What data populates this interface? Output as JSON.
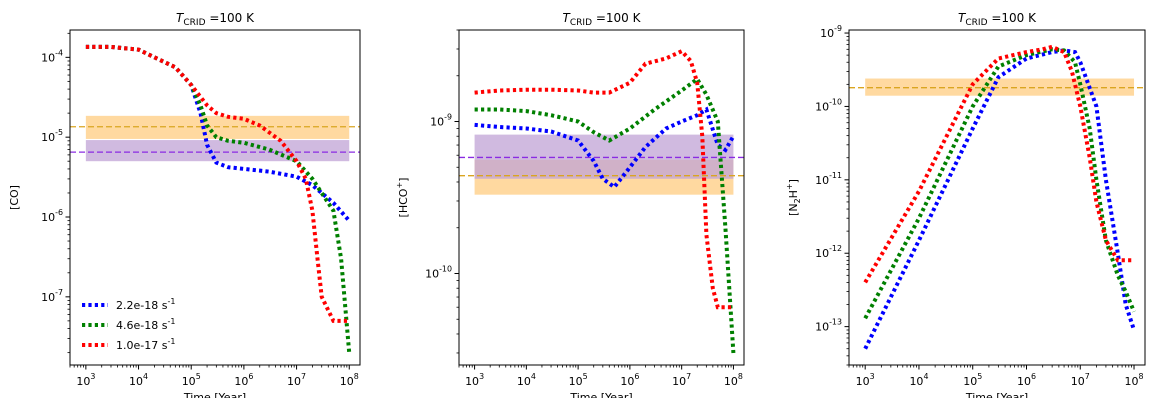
{
  "chart_data": [
    {
      "type": "line",
      "title": "T_CRID =100 K",
      "title_parts": {
        "symbol": "T",
        "subscript": "CRID",
        "rest": " =100 K"
      },
      "xlabel": "Time [Year]",
      "ylabel": "[CO]",
      "xscale": "log",
      "yscale": "log",
      "xlim": [
        500,
        160000000
      ],
      "ylim": [
        1.4e-08,
        0.00022
      ],
      "x_ticks": [
        {
          "value": 1000.0,
          "label": "10^3"
        },
        {
          "value": 10000.0,
          "label": "10^4"
        },
        {
          "value": 100000.0,
          "label": "10^5"
        },
        {
          "value": 1000000.0,
          "label": "10^6"
        },
        {
          "value": 10000000.0,
          "label": "10^7"
        },
        {
          "value": 100000000.0,
          "label": "10^8"
        }
      ],
      "y_ticks": [
        {
          "value": 1e-07,
          "label": "10^-7"
        },
        {
          "value": 1e-06,
          "label": "10^-6"
        },
        {
          "value": 1e-05,
          "label": "10^-5"
        },
        {
          "value": 0.0001,
          "label": "10^-4"
        }
      ],
      "series": [
        {
          "color": "#0000ff",
          "x": [
            1000.0,
            3000.0,
            10000.0,
            20000.0,
            50000.0,
            100000.0,
            150000.0,
            200000.0,
            300000.0,
            500000.0,
            1000000.0,
            3000000.0,
            10000000.0,
            20000000.0,
            50000000.0,
            100000000.0
          ],
          "y": [
            0.000135,
            0.000135,
            0.000125,
            0.0001,
            7.5e-05,
            4.5e-05,
            2e-05,
            8e-06,
            4.8e-06,
            4.2e-06,
            4e-06,
            3.7e-06,
            3.2e-06,
            2.5e-06,
            1.5e-06,
            9e-07
          ]
        },
        {
          "color": "#008000",
          "x": [
            1000.0,
            3000.0,
            10000.0,
            20000.0,
            50000.0,
            100000.0,
            150000.0,
            200000.0,
            300000.0,
            500000.0,
            1000000.0,
            3000000.0,
            10000000.0,
            20000000.0,
            30000000.0,
            50000000.0,
            70000000.0,
            100000000.0
          ],
          "y": [
            0.000135,
            0.000135,
            0.000125,
            0.0001,
            7.5e-05,
            4.5e-05,
            2.5e-05,
            1.4e-05,
            1e-05,
            9e-06,
            8.5e-06,
            7e-06,
            5e-06,
            3e-06,
            2e-06,
            1.2e-06,
            3e-07,
            2e-08
          ]
        },
        {
          "color": "#ff0000",
          "x": [
            1000.0,
            3000.0,
            10000.0,
            20000.0,
            50000.0,
            100000.0,
            200000.0,
            300000.0,
            500000.0,
            1000000.0,
            2000000.0,
            5000000.0,
            10000000.0,
            15000000.0,
            20000000.0,
            25000000.0,
            30000000.0,
            50000000.0,
            70000000.0,
            100000000.0
          ],
          "y": [
            0.000135,
            0.000135,
            0.000125,
            0.0001,
            7.5e-05,
            4.5e-05,
            2.5e-05,
            2e-05,
            1.8e-05,
            1.7e-05,
            1.4e-05,
            9e-06,
            5e-06,
            3e-06,
            1.2e-06,
            3e-07,
            1e-07,
            5e-08,
            5e-08,
            5e-08
          ]
        }
      ],
      "hlines": [
        {
          "y": 1.35e-05,
          "color": "#daa520",
          "band": [
            9.5e-06,
            1.85e-05
          ],
          "band_color": "#ffcc80"
        },
        {
          "y": 6.5e-06,
          "color": "#8a2be2",
          "band": [
            5e-06,
            9.2e-06
          ],
          "band_color": "#c0a3d6"
        }
      ],
      "legend": {
        "placement": "lower-left",
        "entries": [
          {
            "label": "2.2e-18 s^-1",
            "color": "#0000ff"
          },
          {
            "label": "4.6e-18 s^-1",
            "color": "#008000"
          },
          {
            "label": "1.0e-17 s^-1",
            "color": "#ff0000"
          }
        ]
      },
      "grid": false
    },
    {
      "type": "line",
      "title": "T_CRID =100 K",
      "title_parts": {
        "symbol": "T",
        "subscript": "CRID",
        "rest": " =100 K"
      },
      "xlabel": "Time [Year]",
      "ylabel": "[HCO+]",
      "ylabel_parts": {
        "base": "[HCO",
        "sup": "+",
        "rest": "]"
      },
      "xscale": "log",
      "yscale": "log",
      "xlim": [
        500,
        160000000
      ],
      "ylim": [
        2.5e-11,
        4e-09
      ],
      "x_ticks": [
        {
          "value": 1000.0,
          "label": "10^3"
        },
        {
          "value": 10000.0,
          "label": "10^4"
        },
        {
          "value": 100000.0,
          "label": "10^5"
        },
        {
          "value": 1000000.0,
          "label": "10^6"
        },
        {
          "value": 10000000.0,
          "label": "10^7"
        },
        {
          "value": 100000000.0,
          "label": "10^8"
        }
      ],
      "y_ticks": [
        {
          "value": 1e-10,
          "label": "10^-10"
        },
        {
          "value": 1e-09,
          "label": "10^-9"
        }
      ],
      "series": [
        {
          "color": "#0000ff",
          "x": [
            1000.0,
            3000.0,
            10000.0,
            30000.0,
            100000.0,
            200000.0,
            300000.0,
            500000.0,
            1000000.0,
            2000000.0,
            5000000.0,
            10000000.0,
            20000000.0,
            30000000.0,
            50000000.0,
            70000000.0,
            100000000.0
          ],
          "y": [
            9.5e-10,
            9.2e-10,
            9e-10,
            8.6e-10,
            7.5e-10,
            5.5e-10,
            4.2e-10,
            3.7e-10,
            5e-10,
            6.8e-10,
            9e-10,
            1e-09,
            1.1e-09,
            1.2e-09,
            7e-10,
            6.5e-10,
            8e-10
          ]
        },
        {
          "color": "#008000",
          "x": [
            1000.0,
            3000.0,
            10000.0,
            30000.0,
            100000.0,
            200000.0,
            400000.0,
            1000000.0,
            3000000.0,
            10000000.0,
            20000000.0,
            30000000.0,
            50000000.0,
            70000000.0,
            100000000.0
          ],
          "y": [
            1.2e-09,
            1.2e-09,
            1.17e-09,
            1.1e-09,
            1e-09,
            8.5e-10,
            7.5e-10,
            9e-10,
            1.2e-09,
            1.6e-09,
            1.9e-09,
            1.5e-09,
            1e-09,
            2e-10,
            3e-11
          ]
        },
        {
          "color": "#ff0000",
          "x": [
            1000.0,
            3000.0,
            10000.0,
            30000.0,
            100000.0,
            200000.0,
            400000.0,
            1000000.0,
            2000000.0,
            5000000.0,
            10000000.0,
            15000000.0,
            20000000.0,
            25000000.0,
            30000000.0,
            40000000.0,
            50000000.0,
            70000000.0,
            100000000.0
          ],
          "y": [
            1.55e-09,
            1.6e-09,
            1.62e-09,
            1.62e-09,
            1.6e-09,
            1.55e-09,
            1.55e-09,
            1.8e-09,
            2.4e-09,
            2.6e-09,
            2.9e-09,
            2.5e-09,
            1.8e-09,
            8e-10,
            1.8e-10,
            8e-11,
            6e-11,
            6e-11,
            6e-11
          ]
        }
      ],
      "hlines": [
        {
          "y": 4.4e-10,
          "color": "#daa520",
          "band": [
            3.3e-10,
            5.6e-10
          ],
          "band_color": "#ffcc80"
        },
        {
          "y": 5.8e-10,
          "color": "#8a2be2",
          "band": [
            4.2e-10,
            8.2e-10
          ],
          "band_color": "#c0a3d6"
        }
      ],
      "grid": false
    },
    {
      "type": "line",
      "title": "T_CRID =100 K",
      "title_parts": {
        "symbol": "T",
        "subscript": "CRID",
        "rest": " =100 K"
      },
      "xlabel": "Time [Year]",
      "ylabel": "[N2H+]",
      "ylabel_parts": {
        "base": "[N",
        "sub": "2",
        "mid": "H",
        "sup": "+",
        "rest": "]"
      },
      "xscale": "log",
      "yscale": "log",
      "xlim": [
        500,
        160000000
      ],
      "ylim": [
        3e-14,
        1.1e-09
      ],
      "x_ticks": [
        {
          "value": 1000.0,
          "label": "10^3"
        },
        {
          "value": 10000.0,
          "label": "10^4"
        },
        {
          "value": 100000.0,
          "label": "10^5"
        },
        {
          "value": 1000000.0,
          "label": "10^6"
        },
        {
          "value": 10000000.0,
          "label": "10^7"
        },
        {
          "value": 100000000.0,
          "label": "10^8"
        }
      ],
      "y_ticks": [
        {
          "value": 1e-13,
          "label": "10^-13"
        },
        {
          "value": 1e-12,
          "label": "10^-12"
        },
        {
          "value": 1e-11,
          "label": "10^-11"
        },
        {
          "value": 1e-10,
          "label": "10^-10"
        },
        {
          "value": 1e-09,
          "label": "10^-9"
        }
      ],
      "series": [
        {
          "color": "#0000ff",
          "x": [
            1000.0,
            10000.0,
            100000.0,
            300000.0,
            1000000.0,
            3000000.0,
            5000000.0,
            8000000.0,
            10000000.0,
            20000000.0,
            30000000.0,
            50000000.0,
            70000000.0,
            100000000.0
          ],
          "y": [
            5e-14,
            1.5e-12,
            5e-11,
            2.5e-10,
            4.5e-10,
            5.5e-10,
            5.8e-10,
            5.5e-10,
            4e-10,
            1e-10,
            1e-11,
            1e-12,
            2e-13,
            9e-14
          ]
        },
        {
          "color": "#008000",
          "x": [
            1000.0,
            10000.0,
            100000.0,
            300000.0,
            1000000.0,
            3000000.0,
            5000000.0,
            8000000.0,
            10000000.0,
            15000000.0,
            20000000.0,
            30000000.0,
            50000000.0,
            70000000.0,
            100000000.0
          ],
          "y": [
            1.3e-13,
            3e-12,
            1e-10,
            3.5e-10,
            5e-10,
            6e-10,
            5.8e-10,
            4e-10,
            2e-10,
            5e-11,
            1e-11,
            1.5e-12,
            5e-13,
            3e-13,
            1.6e-13
          ]
        },
        {
          "color": "#ff0000",
          "x": [
            1000.0,
            10000.0,
            100000.0,
            300000.0,
            1000000.0,
            2000000.0,
            3000000.0,
            5000000.0,
            7000000.0,
            10000000.0,
            15000000.0,
            20000000.0,
            30000000.0,
            50000000.0,
            70000000.0,
            100000000.0
          ],
          "y": [
            4e-13,
            7e-12,
            2e-10,
            4.5e-10,
            5.5e-10,
            6e-10,
            6.5e-10,
            5.5e-10,
            3e-10,
            1e-10,
            2e-11,
            5e-12,
            1.5e-12,
            8e-13,
            8e-13,
            8e-13
          ]
        }
      ],
      "hlines": [
        {
          "y": 1.8e-10,
          "color": "#daa520",
          "band": [
            1.4e-10,
            2.4e-10
          ],
          "band_color": "#ffcc80"
        }
      ],
      "grid": false
    }
  ]
}
